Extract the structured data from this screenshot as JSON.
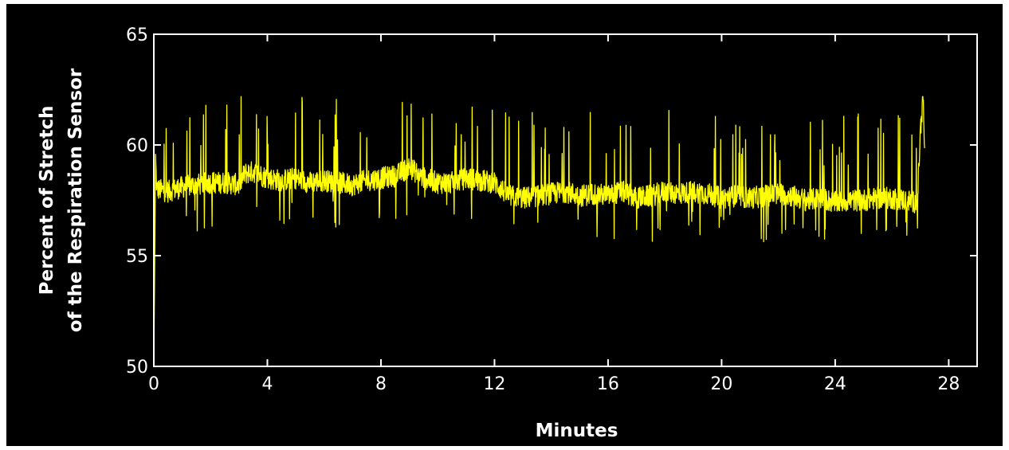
{
  "chart_data": {
    "type": "line",
    "title": "",
    "xlabel": "Minutes",
    "ylabel_lines": [
      "Percent of Stretch",
      "of the Respiration Sensor"
    ],
    "xlim": [
      0,
      29
    ],
    "ylim": [
      50,
      65
    ],
    "xticks": [
      0,
      4,
      8,
      12,
      16,
      20,
      24,
      28
    ],
    "yticks": [
      50,
      55,
      60,
      65
    ],
    "grid": false,
    "colors": {
      "background": "#000000",
      "axes": "#ffffff",
      "line": "#ffff00"
    },
    "series": [
      {
        "x": [
          0,
          0.05,
          0.1,
          0.5,
          1.0,
          1.5,
          2.0,
          2.5,
          3.0,
          3.2,
          3.5,
          4.0,
          4.5,
          5.0,
          5.5,
          6.0,
          6.5,
          7.0,
          7.5,
          8.0,
          8.5,
          9.0,
          9.5,
          10.0,
          10.5,
          11.0,
          11.5,
          12.0,
          12.5,
          13.0,
          13.5,
          14.0,
          14.5,
          15.0,
          15.5,
          16.0,
          16.5,
          17.0,
          17.5,
          18.0,
          18.5,
          19.0,
          19.5,
          20.0,
          20.5,
          21.0,
          21.5,
          22.0,
          22.5,
          23.0,
          23.5,
          24.0,
          24.5,
          25.0,
          25.5,
          26.0,
          26.5,
          26.9,
          27.0,
          27.1,
          27.15
        ],
        "y": [
          50.0,
          59.8,
          58.0,
          57.9,
          58.1,
          58.2,
          58.3,
          58.3,
          58.2,
          58.7,
          58.8,
          58.5,
          58.4,
          58.5,
          58.3,
          58.4,
          58.3,
          58.2,
          58.4,
          58.5,
          58.6,
          59.0,
          58.5,
          58.3,
          58.3,
          58.5,
          58.4,
          58.3,
          57.7,
          57.6,
          57.7,
          57.8,
          57.9,
          57.7,
          57.8,
          57.7,
          57.9,
          57.6,
          57.7,
          57.9,
          57.8,
          57.9,
          57.8,
          57.6,
          57.7,
          57.6,
          57.7,
          57.8,
          57.7,
          57.5,
          57.6,
          57.4,
          57.5,
          57.5,
          57.6,
          57.6,
          57.5,
          57.4,
          60.6,
          62.2,
          59.5
        ]
      }
    ]
  }
}
